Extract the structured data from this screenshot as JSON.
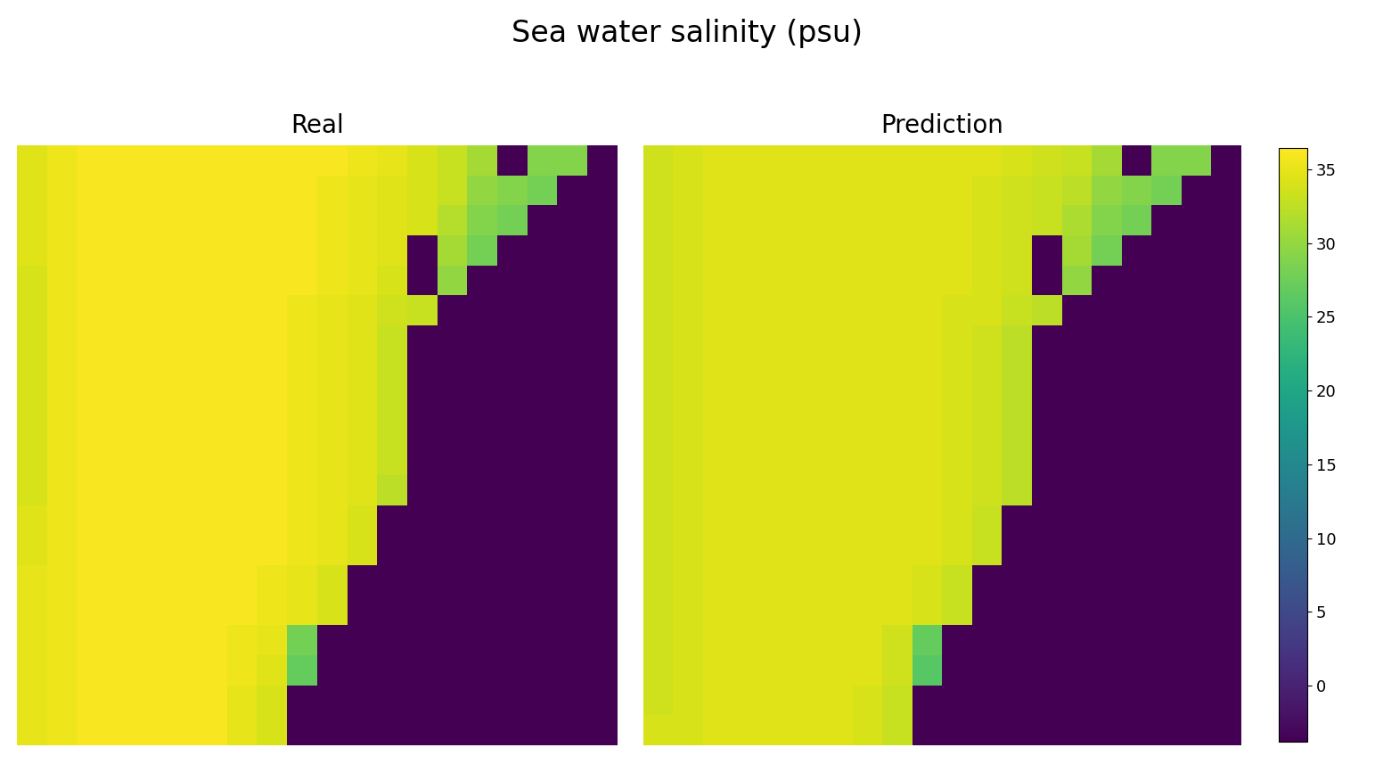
{
  "chart_data": {
    "type": "heatmap",
    "title": "Sea water salinity (psu)",
    "color": "viridis",
    "tick_labels": false,
    "panels": [
      {
        "title": "Real",
        "cells": [
          [
            34.5,
            35.5,
            36,
            36,
            36,
            36,
            36,
            36,
            36,
            36,
            36,
            35.5,
            35,
            34,
            33,
            31,
            -3.8,
            29,
            29,
            -3.8
          ],
          [
            34.5,
            35.5,
            36,
            36,
            36,
            36,
            36,
            36,
            36,
            36,
            35.5,
            35,
            34.5,
            34,
            33,
            30,
            29,
            28,
            -3.8,
            -3.8
          ],
          [
            34.5,
            35.5,
            36,
            36,
            36,
            36,
            36,
            36,
            36,
            36,
            35.5,
            35,
            34.5,
            34,
            32,
            29,
            28,
            -3.8,
            -3.8,
            -3.8
          ],
          [
            34.5,
            35.5,
            36,
            36,
            36,
            36,
            36,
            36,
            36,
            36,
            35.5,
            35,
            34.5,
            -3.8,
            31,
            28,
            -3.8,
            -3.8,
            -3.8,
            -3.8
          ],
          [
            34,
            35.5,
            36,
            36,
            36,
            36,
            36,
            36,
            36,
            36,
            35.5,
            35,
            34,
            -3.8,
            30,
            -3.8,
            -3.8,
            -3.8,
            -3.8,
            -3.8
          ],
          [
            34,
            35.5,
            36,
            36,
            36,
            36,
            36,
            36,
            36,
            35.5,
            35,
            34.5,
            33.5,
            33,
            -3.8,
            -3.8,
            -3.8,
            -3.8,
            -3.8,
            -3.8
          ],
          [
            34,
            35.5,
            36,
            36,
            36,
            36,
            36,
            36,
            36,
            35.5,
            35,
            34.5,
            33,
            -3.8,
            -3.8,
            -3.8,
            -3.8,
            -3.8,
            -3.8,
            -3.8
          ],
          [
            34,
            35.5,
            36,
            36,
            36,
            36,
            36,
            36,
            36,
            35.5,
            35,
            34.5,
            33,
            -3.8,
            -3.8,
            -3.8,
            -3.8,
            -3.8,
            -3.8,
            -3.8
          ],
          [
            34,
            35.5,
            36,
            36,
            36,
            36,
            36,
            36,
            36,
            35.5,
            35,
            34.5,
            33,
            -3.8,
            -3.8,
            -3.8,
            -3.8,
            -3.8,
            -3.8,
            -3.8
          ],
          [
            34,
            35.5,
            36,
            36,
            36,
            36,
            36,
            36,
            36,
            35.5,
            35,
            34.5,
            33,
            -3.8,
            -3.8,
            -3.8,
            -3.8,
            -3.8,
            -3.8,
            -3.8
          ],
          [
            34,
            35.5,
            36,
            36,
            36,
            36,
            36,
            36,
            36,
            35.5,
            35,
            34.5,
            33,
            -3.8,
            -3.8,
            -3.8,
            -3.8,
            -3.8,
            -3.8,
            -3.8
          ],
          [
            34,
            35.5,
            36,
            36,
            36,
            36,
            36,
            36,
            36,
            35.5,
            35,
            34.5,
            32.5,
            -3.8,
            -3.8,
            -3.8,
            -3.8,
            -3.8,
            -3.8,
            -3.8
          ],
          [
            34.5,
            35.5,
            36,
            36,
            36,
            36,
            36,
            36,
            36,
            35.5,
            35,
            34,
            -3.8,
            -3.8,
            -3.8,
            -3.8,
            -3.8,
            -3.8,
            -3.8,
            -3.8
          ],
          [
            34.5,
            35.5,
            36,
            36,
            36,
            36,
            36,
            36,
            36,
            35.5,
            35,
            34,
            -3.8,
            -3.8,
            -3.8,
            -3.8,
            -3.8,
            -3.8,
            -3.8,
            -3.8
          ],
          [
            35,
            35.5,
            36,
            36,
            36,
            36,
            36,
            36,
            35.5,
            35,
            34,
            -3.8,
            -3.8,
            -3.8,
            -3.8,
            -3.8,
            -3.8,
            -3.8,
            -3.8,
            -3.8
          ],
          [
            35,
            35.5,
            36,
            36,
            36,
            36,
            36,
            36,
            35.5,
            35,
            34,
            -3.8,
            -3.8,
            -3.8,
            -3.8,
            -3.8,
            -3.8,
            -3.8,
            -3.8,
            -3.8
          ],
          [
            35,
            35.5,
            36,
            36,
            36,
            36,
            36,
            35.5,
            35,
            28,
            -3.8,
            -3.8,
            -3.8,
            -3.8,
            -3.8,
            -3.8,
            -3.8,
            -3.8,
            -3.8,
            -3.8
          ],
          [
            35,
            35.5,
            36,
            36,
            36,
            36,
            36,
            35.5,
            34.5,
            27,
            -3.8,
            -3.8,
            -3.8,
            -3.8,
            -3.8,
            -3.8,
            -3.8,
            -3.8,
            -3.8,
            -3.8
          ],
          [
            35,
            35.5,
            36,
            36,
            36,
            36,
            36,
            35,
            34,
            -3.8,
            -3.8,
            -3.8,
            -3.8,
            -3.8,
            -3.8,
            -3.8,
            -3.8,
            -3.8,
            -3.8,
            -3.8
          ],
          [
            35,
            35.5,
            36,
            36,
            36,
            36,
            36,
            35,
            34,
            -3.8,
            -3.8,
            -3.8,
            -3.8,
            -3.8,
            -3.8,
            -3.8,
            -3.8,
            -3.8,
            -3.8,
            -3.8
          ]
        ]
      },
      {
        "title": "Prediction",
        "cells": [
          [
            33.5,
            34,
            34.5,
            34.5,
            34.5,
            34.5,
            34.5,
            34.5,
            34.5,
            34.5,
            34.5,
            34.5,
            34,
            33.5,
            33,
            31,
            -3.8,
            29,
            29,
            -3.8
          ],
          [
            33.5,
            34,
            34.5,
            34.5,
            34.5,
            34.5,
            34.5,
            34.5,
            34.5,
            34.5,
            34.5,
            34,
            33.5,
            33,
            32.5,
            30,
            29,
            28,
            -3.8,
            -3.8
          ],
          [
            33.5,
            34,
            34.5,
            34.5,
            34.5,
            34.5,
            34.5,
            34.5,
            34.5,
            34.5,
            34.5,
            34,
            33.5,
            33,
            31.5,
            29,
            28,
            -3.8,
            -3.8,
            -3.8
          ],
          [
            33.5,
            34,
            34.5,
            34.5,
            34.5,
            34.5,
            34.5,
            34.5,
            34.5,
            34.5,
            34.5,
            34,
            33.5,
            -3.8,
            31,
            28,
            -3.8,
            -3.8,
            -3.8,
            -3.8
          ],
          [
            33.5,
            34,
            34.5,
            34.5,
            34.5,
            34.5,
            34.5,
            34.5,
            34.5,
            34.5,
            34.5,
            34,
            33.5,
            -3.8,
            30,
            -3.8,
            -3.8,
            -3.8,
            -3.8,
            -3.8
          ],
          [
            33.5,
            34,
            34.5,
            34.5,
            34.5,
            34.5,
            34.5,
            34.5,
            34.5,
            34.5,
            34,
            34,
            33,
            32.5,
            -3.8,
            -3.8,
            -3.8,
            -3.8,
            -3.8,
            -3.8
          ],
          [
            33.5,
            34,
            34.5,
            34.5,
            34.5,
            34.5,
            34.5,
            34.5,
            34.5,
            34.5,
            34,
            33.5,
            32.5,
            -3.8,
            -3.8,
            -3.8,
            -3.8,
            -3.8,
            -3.8,
            -3.8
          ],
          [
            33.5,
            34,
            34.5,
            34.5,
            34.5,
            34.5,
            34.5,
            34.5,
            34.5,
            34.5,
            34,
            33.5,
            32.5,
            -3.8,
            -3.8,
            -3.8,
            -3.8,
            -3.8,
            -3.8,
            -3.8
          ],
          [
            33.5,
            34,
            34.5,
            34.5,
            34.5,
            34.5,
            34.5,
            34.5,
            34.5,
            34.5,
            34,
            33.5,
            32.5,
            -3.8,
            -3.8,
            -3.8,
            -3.8,
            -3.8,
            -3.8,
            -3.8
          ],
          [
            33.5,
            34,
            34.5,
            34.5,
            34.5,
            34.5,
            34.5,
            34.5,
            34.5,
            34.5,
            34,
            33.5,
            32.5,
            -3.8,
            -3.8,
            -3.8,
            -3.8,
            -3.8,
            -3.8,
            -3.8
          ],
          [
            33.5,
            34,
            34.5,
            34.5,
            34.5,
            34.5,
            34.5,
            34.5,
            34.5,
            34.5,
            34,
            33.5,
            32.5,
            -3.8,
            -3.8,
            -3.8,
            -3.8,
            -3.8,
            -3.8,
            -3.8
          ],
          [
            33.5,
            34,
            34.5,
            34.5,
            34.5,
            34.5,
            34.5,
            34.5,
            34.5,
            34.5,
            34,
            33.5,
            32.5,
            -3.8,
            -3.8,
            -3.8,
            -3.8,
            -3.8,
            -3.8,
            -3.8
          ],
          [
            33.5,
            34,
            34.5,
            34.5,
            34.5,
            34.5,
            34.5,
            34.5,
            34.5,
            34.5,
            34,
            33,
            -3.8,
            -3.8,
            -3.8,
            -3.8,
            -3.8,
            -3.8,
            -3.8,
            -3.8
          ],
          [
            33.5,
            34,
            34.5,
            34.5,
            34.5,
            34.5,
            34.5,
            34.5,
            34.5,
            34.5,
            34,
            33,
            -3.8,
            -3.8,
            -3.8,
            -3.8,
            -3.8,
            -3.8,
            -3.8,
            -3.8
          ],
          [
            33.5,
            34,
            34.5,
            34.5,
            34.5,
            34.5,
            34.5,
            34.5,
            34.5,
            34,
            33,
            -3.8,
            -3.8,
            -3.8,
            -3.8,
            -3.8,
            -3.8,
            -3.8,
            -3.8,
            -3.8
          ],
          [
            33.5,
            34,
            34.5,
            34.5,
            34.5,
            34.5,
            34.5,
            34.5,
            34.5,
            34,
            33,
            -3.8,
            -3.8,
            -3.8,
            -3.8,
            -3.8,
            -3.8,
            -3.8,
            -3.8,
            -3.8
          ],
          [
            33.5,
            34,
            34.5,
            34.5,
            34.5,
            34.5,
            34.5,
            34.5,
            33.5,
            27,
            -3.8,
            -3.8,
            -3.8,
            -3.8,
            -3.8,
            -3.8,
            -3.8,
            -3.8,
            -3.8,
            -3.8
          ],
          [
            33.5,
            34,
            34.5,
            34.5,
            34.5,
            34.5,
            34.5,
            34.5,
            33.5,
            26,
            -3.8,
            -3.8,
            -3.8,
            -3.8,
            -3.8,
            -3.8,
            -3.8,
            -3.8,
            -3.8,
            -3.8
          ],
          [
            33.5,
            34,
            34.5,
            34.5,
            34.5,
            34.5,
            34.5,
            34,
            33,
            -3.8,
            -3.8,
            -3.8,
            -3.8,
            -3.8,
            -3.8,
            -3.8,
            -3.8,
            -3.8,
            -3.8,
            -3.8
          ],
          [
            34,
            34,
            34.5,
            34.5,
            34.5,
            34.5,
            34.5,
            34,
            33,
            -3.8,
            -3.8,
            -3.8,
            -3.8,
            -3.8,
            -3.8,
            -3.8,
            -3.8,
            -3.8,
            -3.8,
            -3.8
          ]
        ]
      }
    ],
    "colorbar": {
      "range": [
        -3.8,
        36.45
      ],
      "ticks": [
        0,
        5,
        10,
        15,
        20,
        25,
        30,
        35
      ]
    }
  }
}
